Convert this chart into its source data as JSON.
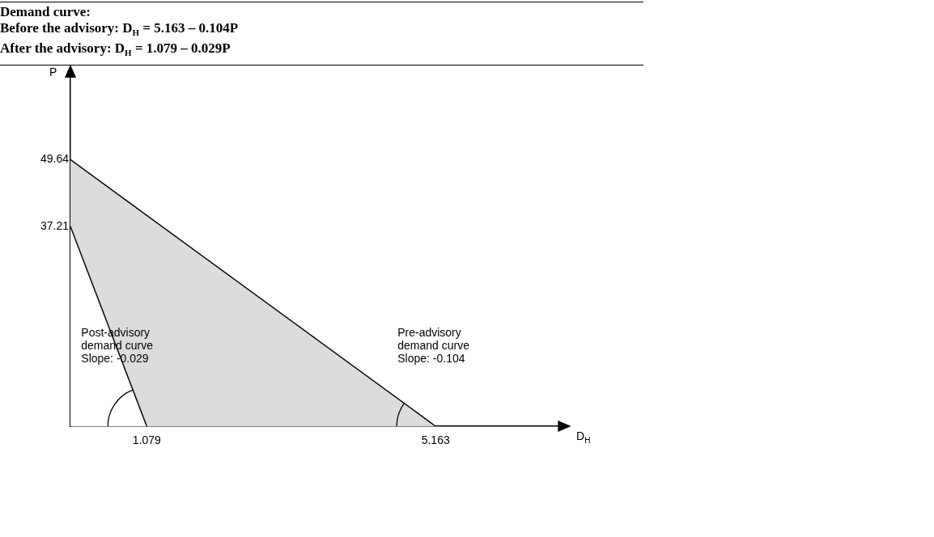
{
  "chart_data": {
    "type": "area",
    "title": "Demand curve:",
    "subtitle": "Before the advisory: D$_{H}$ = 5.163 – 0.104P\nAfter the advisory: D$_{H}$ = 1.079 – 0.029P",
    "xlabel": "D$_{H}$",
    "ylabel": "P",
    "series": [
      {
        "color": "#ffffff",
        "x": [
          0,
          1.079
        ],
        "values": [
          37.21,
          0
        ]
      },
      {
        "color": "#dcdcdc",
        "x": [
          0,
          5.163
        ],
        "values": [
          49.64,
          0
        ]
      }
    ],
    "xlim": [
      0,
      6.9
    ],
    "ylim": [
      0,
      65
    ],
    "xticks": [
      1.079,
      5.163
    ],
    "yticks": [
      37.21,
      49.64
    ],
    "grid": false,
    "legend": false,
    "annotations": [
      "Post-advisory\ndemand curve\nSlope: -0.029",
      "Pre-advisory\ndemand curve\nSlope: -0.104"
    ]
  }
}
